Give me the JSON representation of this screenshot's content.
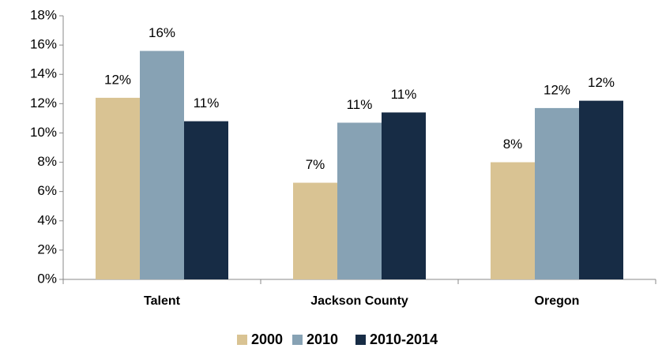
{
  "chart_data": {
    "type": "bar",
    "categories": [
      "Talent",
      "Jackson County",
      "Oregon"
    ],
    "series": [
      {
        "name": "2000",
        "color": "#d9c393",
        "values": [
          12.4,
          6.6,
          8.0
        ],
        "value_labels": [
          "12%",
          "7%",
          "8%"
        ]
      },
      {
        "name": "2010",
        "color": "#87a2b4",
        "values": [
          15.6,
          10.7,
          11.7
        ],
        "value_labels": [
          "16%",
          "11%",
          "12%"
        ]
      },
      {
        "name": "2010-2014",
        "color": "#172c45",
        "values": [
          10.8,
          11.4,
          12.2
        ],
        "value_labels": [
          "11%",
          "11%",
          "12%"
        ]
      }
    ],
    "ylim": [
      0,
      18
    ],
    "yticks": [
      {
        "value": 0,
        "label": "0%"
      },
      {
        "value": 2,
        "label": "2%"
      },
      {
        "value": 4,
        "label": "4%"
      },
      {
        "value": 6,
        "label": "6%"
      },
      {
        "value": 8,
        "label": "8%"
      },
      {
        "value": 10,
        "label": "10%"
      },
      {
        "value": 12,
        "label": "12%"
      },
      {
        "value": 14,
        "label": "14%"
      },
      {
        "value": 16,
        "label": "16%"
      },
      {
        "value": 18,
        "label": "18%"
      }
    ],
    "grid": false,
    "legend": "bottom"
  }
}
